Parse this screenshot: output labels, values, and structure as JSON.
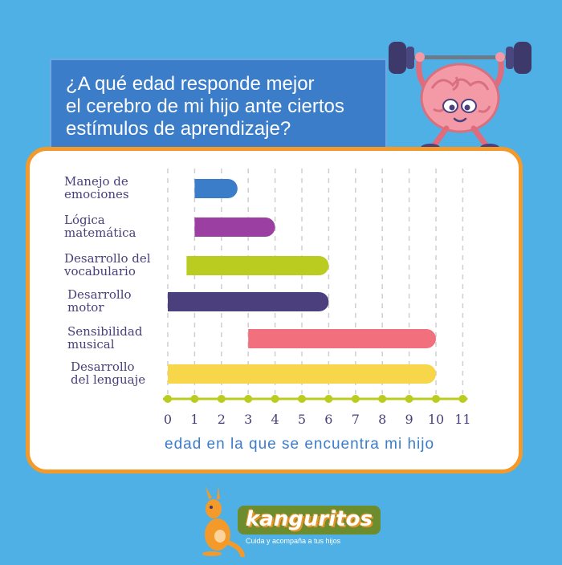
{
  "title_lines": [
    "¿A qué edad responde mejor",
    "el cerebro de mi hijo ante ciertos",
    "estímulos de aprendizaje?"
  ],
  "chart_data": {
    "type": "bar",
    "orientation": "horizontal",
    "title": "¿A qué edad responde mejor el cerebro de mi hijo ante ciertos estímulos de aprendizaje?",
    "xlabel": "edad en la que se encuentra mi hijo",
    "ylabel": "",
    "xlim": [
      0,
      11
    ],
    "xticks": [
      "0",
      "1",
      "2",
      "3",
      "4",
      "5",
      "6",
      "7",
      "8",
      "9",
      "10",
      "11"
    ],
    "grid": true,
    "legend": "none",
    "categories": [
      {
        "label_lines": [
          "Manejo de",
          "emociones"
        ],
        "start": 1,
        "end": 2.6,
        "color": "#3b7dc9"
      },
      {
        "label_lines": [
          "Lógica",
          "matemática"
        ],
        "start": 1,
        "end": 4,
        "color": "#9b3fa3"
      },
      {
        "label_lines": [
          "Desarrollo del",
          "vocabulario"
        ],
        "start": 0.7,
        "end": 6,
        "color": "#b9cc1f"
      },
      {
        "label_lines": [
          "Desarrollo",
          "motor"
        ],
        "start": 0,
        "end": 6,
        "color": "#4b3f7d"
      },
      {
        "label_lines": [
          "Sensibilidad",
          "musical"
        ],
        "start": 3,
        "end": 10,
        "color": "#f2707e"
      },
      {
        "label_lines": [
          "Desarrollo",
          "del lenguaje"
        ],
        "start": 0,
        "end": 10,
        "color": "#f8d64a"
      }
    ],
    "axis_color": "#b9cc1f"
  },
  "logo": {
    "name": "kanguritos",
    "tagline": "Cuida y acompaña a tus hijos"
  },
  "mascot_icon": "brain-weightlifter-icon"
}
